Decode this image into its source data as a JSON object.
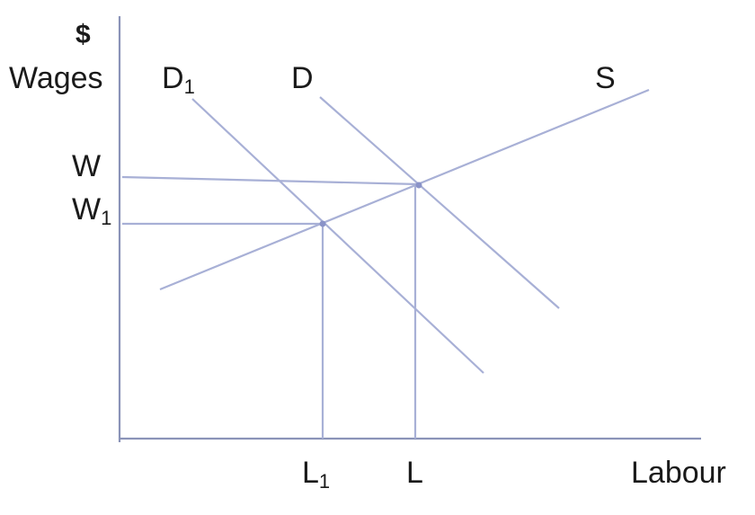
{
  "diagram": {
    "y_axis": {
      "unit": "$",
      "label": "Wages"
    },
    "x_axis": {
      "label": "Labour"
    },
    "curves": [
      {
        "name": "D1",
        "label_main": "D",
        "label_sub": "1"
      },
      {
        "name": "D",
        "label_main": "D",
        "label_sub": ""
      },
      {
        "name": "S",
        "label_main": "S",
        "label_sub": ""
      }
    ],
    "wage_levels": [
      {
        "name": "W",
        "label_main": "W",
        "label_sub": ""
      },
      {
        "name": "W1",
        "label_main": "W",
        "label_sub": "1"
      }
    ],
    "labour_levels": [
      {
        "name": "L1",
        "label_main": "L",
        "label_sub": "1"
      },
      {
        "name": "L",
        "label_main": "L",
        "label_sub": ""
      }
    ],
    "colors": {
      "lines": "#a8b0d6",
      "axes": "#8a93b8",
      "text": "#1a1a1a"
    }
  }
}
